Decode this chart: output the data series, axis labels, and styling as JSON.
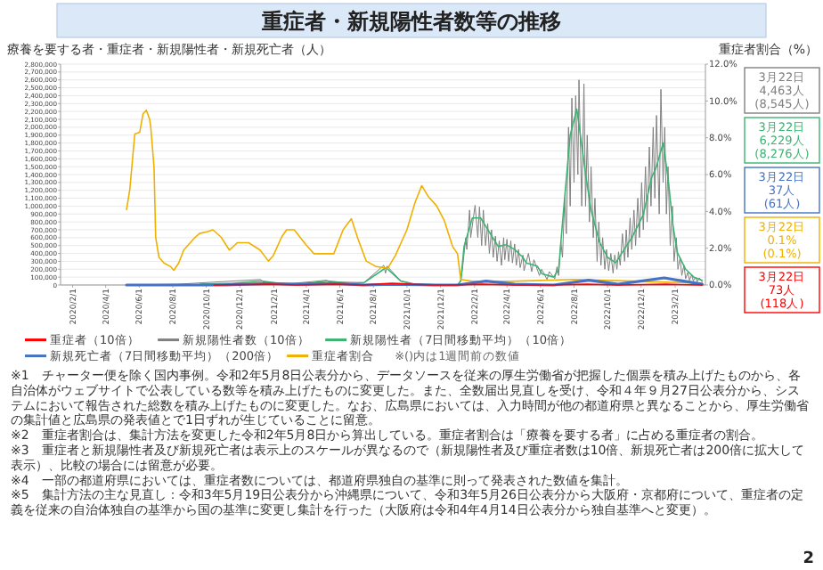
{
  "chart_data": {
    "type": "line",
    "title": "重症者・新規陽性者数等の推移",
    "ylabel": "療養を要する者・重症者・新規陽性者・新規死亡者（人）",
    "y2label": "重症者割合（%）",
    "xlim": [
      "2020-01-10",
      "2023-03-28"
    ],
    "xticks": [
      {
        "value": "2020-02-01",
        "label": "2020/2/1"
      },
      {
        "value": "2020-04-01",
        "label": "2020/4/1"
      },
      {
        "value": "2020-06-01",
        "label": "2020/6/1"
      },
      {
        "value": "2020-08-01",
        "label": "2020/8/1"
      },
      {
        "value": "2020-10-01",
        "label": "2020/10/1"
      },
      {
        "value": "2020-12-01",
        "label": "2020/12/1"
      },
      {
        "value": "2021-02-01",
        "label": "2021/2/1"
      },
      {
        "value": "2021-04-01",
        "label": "2021/4/1"
      },
      {
        "value": "2021-06-01",
        "label": "2021/6/1"
      },
      {
        "value": "2021-08-01",
        "label": "2021/8/1"
      },
      {
        "value": "2021-10-01",
        "label": "2021/10/1"
      },
      {
        "value": "2021-12-01",
        "label": "2021/12/1"
      },
      {
        "value": "2022-02-01",
        "label": "2022/2/1"
      },
      {
        "value": "2022-04-01",
        "label": "2022/4/1"
      },
      {
        "value": "2022-06-01",
        "label": "2022/6/1"
      },
      {
        "value": "2022-08-01",
        "label": "2022/8/1"
      },
      {
        "value": "2022-10-01",
        "label": "2022/10/1"
      },
      {
        "value": "2022-12-01",
        "label": "2022/12/1"
      },
      {
        "value": "2023-02-01",
        "label": "2023/2/1"
      }
    ],
    "ylim": [
      0,
      2800000
    ],
    "yticks": [
      {
        "value": 0,
        "label": "0"
      },
      {
        "value": 100000,
        "label": "100,000"
      },
      {
        "value": 200000,
        "label": "200,000"
      },
      {
        "value": 300000,
        "label": "300,000"
      },
      {
        "value": 400000,
        "label": "400,000"
      },
      {
        "value": 500000,
        "label": "500,000"
      },
      {
        "value": 600000,
        "label": "600,000"
      },
      {
        "value": 700000,
        "label": "700,000"
      },
      {
        "value": 800000,
        "label": "800,000"
      },
      {
        "value": 900000,
        "label": "900,000"
      },
      {
        "value": 1000000,
        "label": "1,000,000"
      },
      {
        "value": 1100000,
        "label": "1,100,000"
      },
      {
        "value": 1200000,
        "label": "1,200,000"
      },
      {
        "value": 1300000,
        "label": "1,300,000"
      },
      {
        "value": 1400000,
        "label": "1,400,000"
      },
      {
        "value": 1500000,
        "label": "1,500,000"
      },
      {
        "value": 1600000,
        "label": "1,600,000"
      },
      {
        "value": 1700000,
        "label": "1,700,000"
      },
      {
        "value": 1800000,
        "label": "1,800,000"
      },
      {
        "value": 1900000,
        "label": "1,900,000"
      },
      {
        "value": 2000000,
        "label": "2,000,000"
      },
      {
        "value": 2100000,
        "label": "2,100,000"
      },
      {
        "value": 2200000,
        "label": "2,200,000"
      },
      {
        "value": 2300000,
        "label": "2,300,000"
      },
      {
        "value": 2400000,
        "label": "2,400,000"
      },
      {
        "value": 2500000,
        "label": "2,500,000"
      },
      {
        "value": 2600000,
        "label": "2,600,000"
      },
      {
        "value": 2700000,
        "label": "2,700,000"
      },
      {
        "value": 2800000,
        "label": "2,800,000"
      }
    ],
    "y2lim": [
      0,
      12
    ],
    "y2ticks": [
      {
        "value": 0,
        "label": "0.0%"
      },
      {
        "value": 2,
        "label": "2.0%"
      },
      {
        "value": 4,
        "label": "4.0%"
      },
      {
        "value": 6,
        "label": "6.0%"
      },
      {
        "value": 8,
        "label": "8.0%"
      },
      {
        "value": 10,
        "label": "10.0%"
      },
      {
        "value": 12,
        "label": "12.0%"
      }
    ],
    "grid": "y",
    "legend": "bottom",
    "marker": "none",
    "line_style": "solid",
    "series": [
      {
        "name": "重症者（10倍）",
        "color": "#ff0000",
        "x": [
          "2020-10-15",
          "2021-01-25",
          "2021-03-15",
          "2021-05-25",
          "2021-07-10",
          "2021-09-03",
          "2021-11-15",
          "2021-12-20",
          "2022-02-15",
          "2022-04-15",
          "2022-06-20",
          "2022-08-25",
          "2022-10-20",
          "2023-01-15",
          "2023-03-22"
        ],
        "values": [
          0,
          10000,
          0,
          10000,
          0,
          20000,
          0,
          0,
          10000,
          0,
          0,
          10000,
          0,
          10000,
          0
        ]
      },
      {
        "name": "新規陽性者数（10倍）",
        "color": "#808080",
        "x": [
          "2020-05-09",
          "2020-08-05",
          "2020-08-10",
          "2021-01-08",
          "2021-01-12",
          "2021-02-20",
          "2021-05-08",
          "2021-05-12",
          "2021-07-15",
          "2021-08-20",
          "2021-08-23",
          "2021-08-26",
          "2021-09-20",
          "2021-10-15",
          "2021-12-10",
          "2022-01-01",
          "2022-01-07",
          "2022-01-10",
          "2022-01-16",
          "2022-01-18",
          "2022-01-23",
          "2022-01-25",
          "2022-02-02",
          "2022-02-07",
          "2022-02-10",
          "2022-02-14",
          "2022-02-17",
          "2022-02-21",
          "2022-02-25",
          "2022-02-28",
          "2022-03-04",
          "2022-03-07",
          "2022-03-11",
          "2022-03-14",
          "2022-03-18",
          "2022-03-22",
          "2022-03-26",
          "2022-03-28",
          "2022-04-01",
          "2022-04-04",
          "2022-04-08",
          "2022-04-11",
          "2022-04-15",
          "2022-04-18",
          "2022-04-22",
          "2022-04-25",
          "2022-04-30",
          "2022-05-02",
          "2022-05-10",
          "2022-05-16",
          "2022-05-20",
          "2022-05-30",
          "2022-06-03",
          "2022-06-13",
          "2022-06-17",
          "2022-06-27",
          "2022-07-01",
          "2022-07-04",
          "2022-07-08",
          "2022-07-11",
          "2022-07-15",
          "2022-07-18",
          "2022-07-22",
          "2022-07-25",
          "2022-07-28",
          "2022-08-01",
          "2022-08-04",
          "2022-08-08",
          "2022-08-10",
          "2022-08-15",
          "2022-08-19",
          "2022-08-22",
          "2022-08-25",
          "2022-08-29",
          "2022-09-01",
          "2022-09-05",
          "2022-09-08",
          "2022-09-12",
          "2022-09-15",
          "2022-09-19",
          "2022-09-22",
          "2022-09-26",
          "2022-09-29",
          "2022-10-03",
          "2022-10-07",
          "2022-10-11",
          "2022-10-14",
          "2022-10-18",
          "2022-10-21",
          "2022-10-24",
          "2022-10-28",
          "2022-11-01",
          "2022-11-04",
          "2022-11-07",
          "2022-11-11",
          "2022-11-14",
          "2022-11-18",
          "2022-11-21",
          "2022-11-25",
          "2022-11-28",
          "2022-12-02",
          "2022-12-05",
          "2022-12-09",
          "2022-12-12",
          "2022-12-16",
          "2022-12-19",
          "2022-12-23",
          "2022-12-26",
          "2022-12-29",
          "2023-01-03",
          "2023-01-06",
          "2023-01-10",
          "2023-01-13",
          "2023-01-16",
          "2023-01-19",
          "2023-01-23",
          "2023-01-27",
          "2023-01-30",
          "2023-02-03",
          "2023-02-06",
          "2023-02-10",
          "2023-02-13",
          "2023-02-17",
          "2023-02-20",
          "2023-02-24",
          "2023-02-27",
          "2023-03-03",
          "2023-03-06",
          "2023-03-10",
          "2023-03-13",
          "2023-03-17",
          "2023-03-22"
        ],
        "values": [
          0,
          10000,
          10000,
          70000,
          40000,
          10000,
          60000,
          40000,
          30000,
          250000,
          150000,
          240000,
          50000,
          10000,
          0,
          0,
          60000,
          200000,
          600000,
          450000,
          950000,
          600000,
          1010000,
          600000,
          990000,
          500000,
          950000,
          500000,
          780000,
          400000,
          700000,
          350000,
          620000,
          300000,
          560000,
          250000,
          600000,
          320000,
          580000,
          300000,
          560000,
          280000,
          520000,
          250000,
          450000,
          220000,
          380000,
          180000,
          400000,
          170000,
          320000,
          120000,
          200000,
          70000,
          170000,
          80000,
          230000,
          120000,
          550000,
          350000,
          1100000,
          650000,
          2000000,
          1000000,
          2370000,
          1300000,
          2400000,
          1400000,
          2600000,
          1000000,
          2550000,
          1000000,
          1900000,
          800000,
          1500000,
          600000,
          1100000,
          300000,
          800000,
          250000,
          600000,
          200000,
          450000,
          180000,
          400000,
          150000,
          380000,
          200000,
          420000,
          250000,
          650000,
          300000,
          700000,
          350000,
          850000,
          450000,
          950000,
          500000,
          1100000,
          600000,
          1300000,
          700000,
          1500000,
          800000,
          1750000,
          1000000,
          2000000,
          1100000,
          2150000,
          900000,
          2480000,
          1300000,
          2000000,
          900000,
          1500000,
          500000,
          1000000,
          300000,
          600000,
          200000,
          350000,
          120000,
          250000,
          80000,
          160000,
          60000,
          130000,
          50000,
          100000,
          40000,
          90000,
          40000
        ]
      },
      {
        "name": "新規陽性者（7日間移動平均）（10倍）",
        "color": "#3cb371",
        "x": [
          "2020-09-20",
          "2020-11-15",
          "2021-01-10",
          "2021-02-20",
          "2021-03-20",
          "2021-05-10",
          "2021-06-20",
          "2021-07-15",
          "2021-08-24",
          "2021-09-20",
          "2021-10-15",
          "2021-12-10",
          "2022-01-01",
          "2022-01-07",
          "2022-01-13",
          "2022-01-28",
          "2022-02-12",
          "2022-02-21",
          "2022-03-07",
          "2022-03-16",
          "2022-03-31",
          "2022-04-15",
          "2022-04-30",
          "2022-05-06",
          "2022-05-26",
          "2022-06-04",
          "2022-06-25",
          "2022-07-04",
          "2022-07-13",
          "2022-07-25",
          "2022-08-06",
          "2022-08-12",
          "2022-08-23",
          "2022-09-01",
          "2022-09-16",
          "2022-10-01",
          "2022-10-16",
          "2022-10-31",
          "2022-11-15",
          "2022-12-05",
          "2022-12-20",
          "2022-12-29",
          "2023-01-10",
          "2023-01-19",
          "2023-01-28",
          "2023-02-05",
          "2023-02-20",
          "2023-03-07",
          "2023-03-22"
        ],
        "values": [
          10000,
          20000,
          50000,
          10000,
          10000,
          50000,
          20000,
          30000,
          220000,
          50000,
          10000,
          0,
          0,
          50000,
          490000,
          850000,
          850000,
          750000,
          590000,
          490000,
          510000,
          450000,
          350000,
          280000,
          240000,
          140000,
          100000,
          200000,
          950000,
          1900000,
          2230000,
          1930000,
          1360000,
          950000,
          550000,
          350000,
          280000,
          450000,
          610000,
          890000,
          1360000,
          1500000,
          1800000,
          1360000,
          750000,
          410000,
          200000,
          100000,
          60000
        ]
      },
      {
        "name": "新規死亡者（7日間移動平均）（200倍）",
        "color": "#4472c4",
        "x": [
          "2020-05-09",
          "2020-06-30",
          "2020-08-25",
          "2020-10-30",
          "2021-01-25",
          "2021-03-15",
          "2021-05-25",
          "2021-07-15",
          "2021-09-05",
          "2021-11-20",
          "2022-01-01",
          "2022-02-22",
          "2022-04-15",
          "2022-06-25",
          "2022-08-28",
          "2022-10-20",
          "2023-01-12",
          "2023-03-22"
        ],
        "values": [
          0,
          0,
          0,
          0,
          20000,
          10000,
          20000,
          0,
          10000,
          0,
          0,
          50000,
          10000,
          0,
          60000,
          10000,
          90000,
          10000
        ]
      },
      {
        "name": "重症者割合",
        "color": "#f0b000",
        "axis": "y2",
        "x": [
          "2020-05-09",
          "2020-05-15",
          "2020-05-24",
          "2020-06-02",
          "2020-06-08",
          "2020-06-14",
          "2020-06-20",
          "2020-06-22",
          "2020-06-28",
          "2020-07-01",
          "2020-07-07",
          "2020-07-16",
          "2020-07-28",
          "2020-08-03",
          "2020-08-12",
          "2020-08-21",
          "2020-09-11",
          "2020-09-19",
          "2020-10-04",
          "2020-10-13",
          "2020-10-28",
          "2020-11-12",
          "2020-11-27",
          "2020-12-17",
          "2021-01-07",
          "2021-01-22",
          "2021-01-31",
          "2021-02-15",
          "2021-02-24",
          "2021-03-10",
          "2021-03-31",
          "2021-04-15",
          "2021-05-06",
          "2021-05-21",
          "2021-06-07",
          "2021-06-22",
          "2021-07-04",
          "2021-07-19",
          "2021-08-06",
          "2021-08-27",
          "2021-09-10",
          "2021-10-01",
          "2021-10-16",
          "2021-10-28",
          "2021-11-09",
          "2021-11-24",
          "2021-12-08",
          "2021-12-23",
          "2022-01-01",
          "2022-01-07",
          "2022-01-28",
          "2022-04-06",
          "2022-08-02",
          "2022-11-29",
          "2023-03-22"
        ],
        "values": [
          4.1,
          5.2,
          8.2,
          8.3,
          9.3,
          9.5,
          9.0,
          8.6,
          6.4,
          2.6,
          1.5,
          1.2,
          1.0,
          0.8,
          1.2,
          1.9,
          2.6,
          2.8,
          2.9,
          3.0,
          2.6,
          1.9,
          2.3,
          2.3,
          1.9,
          1.3,
          1.6,
          2.6,
          3.0,
          3.0,
          2.2,
          1.7,
          1.7,
          1.7,
          3.0,
          3.6,
          2.5,
          1.3,
          1.0,
          0.9,
          1.6,
          3.0,
          4.5,
          5.4,
          4.8,
          4.3,
          3.5,
          2.1,
          1.7,
          0.3,
          0.2,
          0.2,
          0.3,
          0.2,
          0.1
        ]
      }
    ],
    "annotations": [
      "3月22日\n4,463人\n(8,545人)",
      "3月22日\n6,229人\n(8,276人)",
      "3月22日\n37人\n(61人)",
      "3月22日\n0.1%\n(0.1%)",
      "3月22日\n73人\n(118人)",
      "※()内は1週間前の数値",
      "※1　チャーター便を除く国内事例。令和2年5月8日公表分から、データソースを従来の厚生労働省が把握した個票を積み上げたものから、各自治体がウェブサイトで公表している数等を積み上げたものに変更した。また、全数届出見直しを受け、令和４年９月27日公表分から、システムにおいて報告された総数を積み上げたものに変更した。なお、広島県においては、入力時間が他の都道府県と異なることから、厚生労働省の集計値と広島県の発表値とで1日ずれが生じていることに留意。",
      "※2　重症者割合は、集計方法を変更した令和2年5月8日から算出している。重症者割合は「療養を要する者」に占める重症者の割合。",
      "※3　重症者と新規陽性者及び新規死亡者は表示上のスケールが異なるので（新規陽性者及び重症者数は10倍、新規死亡者は200倍に拡大して表示）、比較の場合には留意が必要。",
      "※4　一部の都道府県においては、重症者数については、都道府県独自の基準に則って発表された数値を集計。",
      "※5　集計方法の主な見直し：令和3年5月19日公表分から沖縄県について、令和3年5月26日公表分から大阪府・京都府について、重症者の定義を従来の自治体独自の基準から国の基準に変更し集計を行った（大阪府は令和4年4月14日公表分から独自基準へと変更）。",
      "2"
    ]
  }
}
